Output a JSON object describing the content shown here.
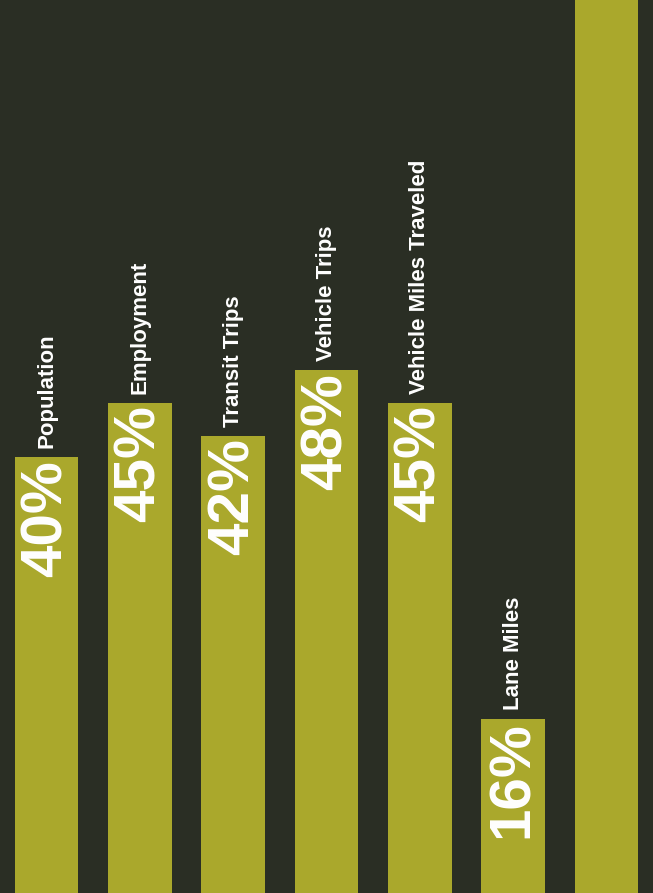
{
  "chart_data": {
    "type": "bar",
    "categories": [
      "Population",
      "Employment",
      "Transit Trips",
      "Vehicle Trips",
      "Vehicle Miles Traveled",
      "Lane Miles",
      null
    ],
    "values": [
      40,
      45,
      42,
      48,
      45,
      16,
      82
    ],
    "value_labels": [
      "40%",
      "45%",
      "42%",
      "48%",
      "45%",
      "16%",
      null
    ],
    "color": "#aaa82c",
    "ylim": [
      0,
      82
    ],
    "data_labels": true,
    "tick_labels": false
  }
}
